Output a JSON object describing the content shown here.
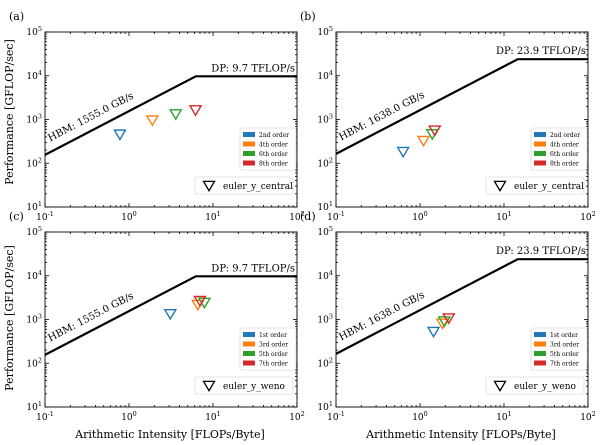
{
  "figure": {
    "ylabel": "Performance [GFLOP/sec]",
    "xlabel": "Arithmetic Intensity [FLOPs/Byte]"
  },
  "chart_data": [
    {
      "type": "scatter",
      "panel_label": "(a)",
      "xlim": [
        0.1,
        100
      ],
      "ylim": [
        10,
        100000
      ],
      "xscale": "log",
      "yscale": "log",
      "xticks": [
        "10^-1",
        "10^0",
        "10^1",
        "10^2"
      ],
      "yticks": [
        "10^1",
        "10^2",
        "10^3",
        "10^4",
        "10^5"
      ],
      "roofline": {
        "bandwidth_label": "HBM: 1555.0 GB/s",
        "peak_label": "DP: 9.7 TFLOP/s",
        "bandwidth_gbs": 1555.0,
        "peak_gflops": 9700
      },
      "legend_title": "euler_y_central",
      "series": [
        {
          "name": "2nd order",
          "color": "#1f77b4",
          "x": 0.78,
          "y": 460
        },
        {
          "name": "4th order",
          "color": "#ff7f0e",
          "x": 1.9,
          "y": 970
        },
        {
          "name": "6th order",
          "color": "#2ca02c",
          "x": 3.6,
          "y": 1340
        },
        {
          "name": "8th order",
          "color": "#d62728",
          "x": 6.2,
          "y": 1650
        }
      ]
    },
    {
      "type": "scatter",
      "panel_label": "(b)",
      "xlim": [
        0.1,
        100
      ],
      "ylim": [
        10,
        100000
      ],
      "xscale": "log",
      "yscale": "log",
      "xticks": [
        "10^-1",
        "10^0",
        "10^1",
        "10^2"
      ],
      "yticks": [
        "10^1",
        "10^2",
        "10^3",
        "10^4",
        "10^5"
      ],
      "roofline": {
        "bandwidth_label": "HBM: 1638.0 GB/s",
        "peak_label": "DP: 23.9 TFLOP/s",
        "bandwidth_gbs": 1638.0,
        "peak_gflops": 23900
      },
      "legend_title": "euler_y_central",
      "series": [
        {
          "name": "2nd order",
          "color": "#1f77b4",
          "x": 0.63,
          "y": 185
        },
        {
          "name": "4th order",
          "color": "#ff7f0e",
          "x": 1.1,
          "y": 330
        },
        {
          "name": "6th order",
          "color": "#2ca02c",
          "x": 1.4,
          "y": 470
        },
        {
          "name": "8th order",
          "color": "#d62728",
          "x": 1.5,
          "y": 570
        }
      ]
    },
    {
      "type": "scatter",
      "panel_label": "(c)",
      "xlim": [
        0.1,
        100
      ],
      "ylim": [
        10,
        100000
      ],
      "xscale": "log",
      "yscale": "log",
      "xticks": [
        "10^-1",
        "10^0",
        "10^1",
        "10^2"
      ],
      "yticks": [
        "10^1",
        "10^2",
        "10^3",
        "10^4",
        "10^5"
      ],
      "roofline": {
        "bandwidth_label": "HBM: 1555.0 GB/s",
        "peak_label": "DP: 9.7 TFLOP/s",
        "bandwidth_gbs": 1555.0,
        "peak_gflops": 9700
      },
      "legend_title": "euler_y_weno",
      "series": [
        {
          "name": "1st order",
          "color": "#1f77b4",
          "x": 3.1,
          "y": 1350
        },
        {
          "name": "3rd order",
          "color": "#ff7f0e",
          "x": 6.6,
          "y": 2200
        },
        {
          "name": "5th order",
          "color": "#2ca02c",
          "x": 7.9,
          "y": 2450
        },
        {
          "name": "7th order",
          "color": "#d62728",
          "x": 7.0,
          "y": 2700
        }
      ]
    },
    {
      "type": "scatter",
      "panel_label": "(d)",
      "xlim": [
        0.1,
        100
      ],
      "ylim": [
        10,
        100000
      ],
      "xscale": "log",
      "yscale": "log",
      "xticks": [
        "10^-1",
        "10^0",
        "10^1",
        "10^2"
      ],
      "yticks": [
        "10^1",
        "10^2",
        "10^3",
        "10^4",
        "10^5"
      ],
      "roofline": {
        "bandwidth_label": "HBM: 1638.0 GB/s",
        "peak_label": "DP: 23.9 TFLOP/s",
        "bandwidth_gbs": 1638.0,
        "peak_gflops": 23900
      },
      "legend_title": "euler_y_weno",
      "series": [
        {
          "name": "1st order",
          "color": "#1f77b4",
          "x": 1.45,
          "y": 530
        },
        {
          "name": "3rd order",
          "color": "#ff7f0e",
          "x": 1.85,
          "y": 820
        },
        {
          "name": "5th order",
          "color": "#2ca02c",
          "x": 1.95,
          "y": 920
        },
        {
          "name": "7th order",
          "color": "#d62728",
          "x": 2.2,
          "y": 1080
        }
      ]
    }
  ]
}
